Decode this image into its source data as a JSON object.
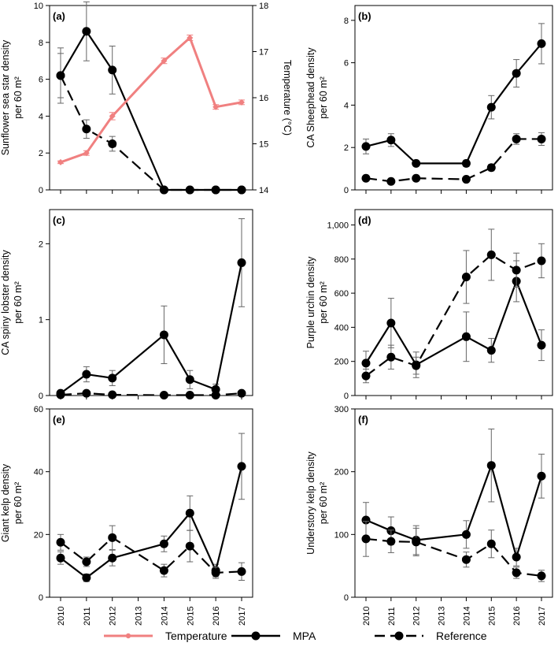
{
  "colors": {
    "temperature": "#f08080",
    "mpa": "#000000",
    "reference": "#000000"
  },
  "legend": [
    {
      "key": "temperature",
      "label": "Temperature",
      "style": "solid",
      "color": "#f08080"
    },
    {
      "key": "mpa",
      "label": "MPA",
      "style": "solid",
      "color": "#000000"
    },
    {
      "key": "reference",
      "label": "Reference",
      "style": "dashed",
      "color": "#000000"
    }
  ],
  "chart_data": [
    {
      "id": "a",
      "panel_label": "(a)",
      "type": "line",
      "ylabel": [
        "Sunflower sea star density",
        "per 60 m²"
      ],
      "ylim": [
        0,
        10
      ],
      "yticks": [
        "0",
        "2",
        "4",
        "6",
        "8",
        "10"
      ],
      "ytick_values": [
        0,
        2,
        4,
        6,
        8,
        10
      ],
      "y2label": "Temperature (°C)",
      "y2lim": [
        14,
        18
      ],
      "y2ticks": [
        "14",
        "15",
        "16",
        "17",
        "18"
      ],
      "y2tick_values": [
        14,
        15,
        16,
        17,
        18
      ],
      "x": [
        2010,
        2011,
        2012,
        2014,
        2015,
        2016,
        2017
      ],
      "xticks": [
        "2010",
        "2011",
        "2012",
        "2013",
        "2014",
        "2015",
        "2016",
        "2017"
      ],
      "series": [
        {
          "name": "MPA",
          "style": "solid",
          "values": [
            6.2,
            8.6,
            6.5,
            0,
            0,
            0,
            0
          ],
          "err": [
            1.5,
            1.6,
            1.3,
            0,
            0,
            0,
            0
          ]
        },
        {
          "name": "Reference",
          "style": "dashed",
          "values": [
            6.2,
            3.3,
            2.5,
            0,
            0,
            0,
            0
          ],
          "err": [
            1.2,
            0.5,
            0.4,
            0,
            0,
            0,
            0
          ]
        },
        {
          "name": "Temperature",
          "style": "temp",
          "axis": "right",
          "values": [
            14.6,
            14.8,
            15.6,
            16.8,
            17.3,
            15.8,
            15.9
          ],
          "err": [
            0.03,
            0.05,
            0.08,
            0.06,
            0.06,
            0.05,
            0.05
          ]
        }
      ]
    },
    {
      "id": "b",
      "panel_label": "(b)",
      "type": "line",
      "ylabel": [
        "CA Sheephead density",
        "per 60 m²"
      ],
      "ylim": [
        0,
        8.7
      ],
      "yticks": [
        "0",
        "2",
        "4",
        "6",
        "8"
      ],
      "ytick_values": [
        0,
        2,
        4,
        6,
        8
      ],
      "x": [
        2010,
        2011,
        2012,
        2014,
        2015,
        2016,
        2017
      ],
      "xticks": [
        "2010",
        "2011",
        "2012",
        "2013",
        "2014",
        "2015",
        "2016",
        "2017"
      ],
      "series": [
        {
          "name": "MPA",
          "style": "solid",
          "values": [
            2.05,
            2.35,
            1.25,
            1.25,
            3.9,
            5.5,
            6.9
          ],
          "err": [
            0.35,
            0.3,
            0.1,
            0.15,
            0.55,
            0.65,
            0.95
          ]
        },
        {
          "name": "Reference",
          "style": "dashed",
          "values": [
            0.55,
            0.4,
            0.55,
            0.5,
            1.05,
            2.4,
            2.4
          ],
          "err": [
            0.08,
            0.06,
            0.08,
            0.08,
            0.15,
            0.25,
            0.3
          ]
        }
      ]
    },
    {
      "id": "c",
      "panel_label": "(c)",
      "type": "line",
      "ylabel": [
        "CA spiny lobster density",
        "per 60 m²"
      ],
      "ylim": [
        0,
        2.45
      ],
      "yticks": [
        "0",
        "1",
        "2"
      ],
      "ytick_values": [
        0,
        1,
        2
      ],
      "x": [
        2010,
        2011,
        2012,
        2014,
        2015,
        2016,
        2017
      ],
      "xticks": [
        "2010",
        "2011",
        "2012",
        "2013",
        "2014",
        "2015",
        "2016",
        "2017"
      ],
      "series": [
        {
          "name": "MPA",
          "style": "solid",
          "values": [
            0.03,
            0.28,
            0.23,
            0.8,
            0.21,
            0.08,
            1.75
          ],
          "err": [
            0.02,
            0.1,
            0.1,
            0.38,
            0.12,
            0.07,
            0.58
          ]
        },
        {
          "name": "Reference",
          "style": "dashed",
          "values": [
            0.01,
            0.03,
            0.01,
            0.005,
            0.005,
            0.005,
            0.03
          ],
          "err": [
            0.01,
            0.01,
            0.01,
            0.005,
            0.005,
            0.005,
            0.015
          ]
        }
      ]
    },
    {
      "id": "d",
      "panel_label": "(d)",
      "type": "line",
      "ylabel": [
        "Purple urchin density",
        "per 60 m²"
      ],
      "ylim": [
        0,
        1090
      ],
      "yticks": [
        "0",
        "200",
        "400",
        "600",
        "800",
        "1,000"
      ],
      "ytick_values": [
        0,
        200,
        400,
        600,
        800,
        1000
      ],
      "x": [
        2010,
        2011,
        2012,
        2014,
        2015,
        2016,
        2017
      ],
      "xticks": [
        "2010",
        "2011",
        "2012",
        "2013",
        "2014",
        "2015",
        "2016",
        "2017"
      ],
      "series": [
        {
          "name": "MPA",
          "style": "solid",
          "values": [
            190,
            425,
            180,
            345,
            265,
            670,
            295
          ],
          "err": [
            70,
            145,
            75,
            145,
            70,
            120,
            90
          ]
        },
        {
          "name": "Reference",
          "style": "dashed",
          "values": [
            115,
            225,
            175,
            695,
            825,
            735,
            790
          ],
          "err": [
            40,
            70,
            50,
            155,
            150,
            100,
            100
          ]
        }
      ]
    },
    {
      "id": "e",
      "panel_label": "(e)",
      "type": "line",
      "ylabel": [
        "Giant kelp density",
        "per 60 m²"
      ],
      "ylim": [
        0,
        60
      ],
      "yticks": [
        "0",
        "20",
        "40",
        "60"
      ],
      "ytick_values": [
        0,
        20,
        40,
        60
      ],
      "x": [
        2010,
        2011,
        2012,
        2014,
        2015,
        2016,
        2017
      ],
      "xticks": [
        "2010",
        "2011",
        "2012",
        "2013",
        "2014",
        "2015",
        "2016",
        "2017"
      ],
      "series": [
        {
          "name": "MPA",
          "style": "solid",
          "values": [
            12.5,
            6.2,
            12.5,
            17,
            26.8,
            8.5,
            41.7
          ],
          "err": [
            2.0,
            1.2,
            2.5,
            2.5,
            5.5,
            2.0,
            10.5
          ]
        },
        {
          "name": "Reference",
          "style": "dashed",
          "values": [
            17.5,
            11.3,
            19,
            8.5,
            16.3,
            7.8,
            8.2
          ],
          "err": [
            2.5,
            1.5,
            3.8,
            2.0,
            5.0,
            1.8,
            2.8
          ]
        }
      ]
    },
    {
      "id": "f",
      "panel_label": "(f)",
      "type": "line",
      "ylabel": [
        "Understory kelp density",
        "per 60 m²"
      ],
      "ylim": [
        0,
        300
      ],
      "yticks": [
        "0",
        "100",
        "200",
        "300"
      ],
      "ytick_values": [
        0,
        100,
        200,
        300
      ],
      "x": [
        2010,
        2011,
        2012,
        2014,
        2015,
        2016,
        2017
      ],
      "xticks": [
        "2010",
        "2011",
        "2012",
        "2013",
        "2014",
        "2015",
        "2016",
        "2017"
      ],
      "series": [
        {
          "name": "MPA",
          "style": "solid",
          "values": [
            123,
            106,
            91,
            100,
            210,
            64,
            193
          ],
          "err": [
            28,
            22,
            23,
            22,
            58,
            14,
            35
          ]
        },
        {
          "name": "Reference",
          "style": "dashed",
          "values": [
            93,
            89,
            88,
            60,
            85,
            39,
            34
          ],
          "err": [
            28,
            18,
            22,
            12,
            22,
            9,
            9
          ]
        }
      ]
    }
  ]
}
